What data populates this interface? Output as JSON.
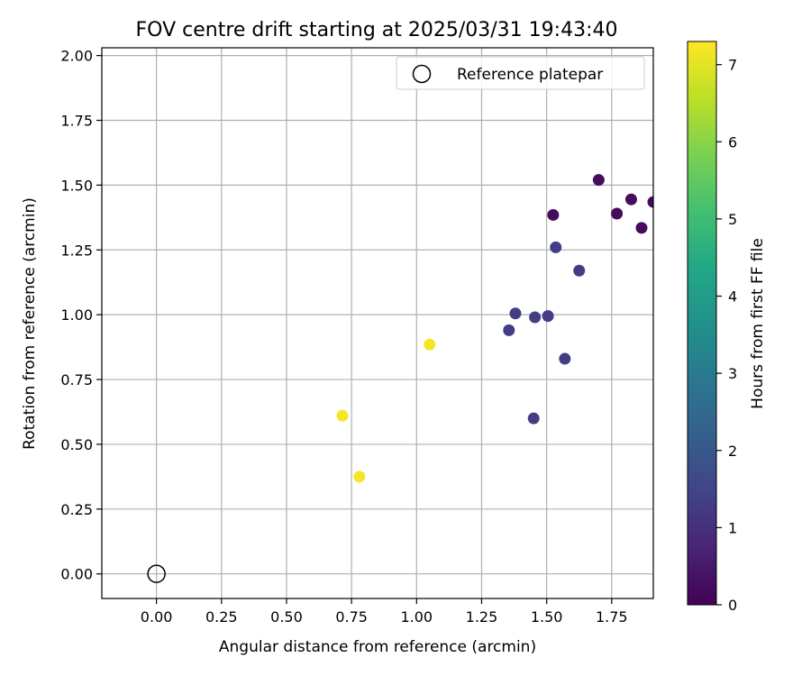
{
  "chart_data": {
    "type": "scatter",
    "title": "FOV centre drift starting at 2025/03/31 19:43:40",
    "xlabel": "Angular distance from reference (arcmin)",
    "ylabel": "Rotation from reference (arcmin)",
    "xlim": [
      -0.21,
      1.91
    ],
    "ylim": [
      -0.095,
      2.03
    ],
    "xticks": [
      0.0,
      0.25,
      0.5,
      0.75,
      1.0,
      1.25,
      1.5,
      1.75
    ],
    "xtick_labels": [
      "0.00",
      "0.25",
      "0.50",
      "0.75",
      "1.00",
      "1.25",
      "1.50",
      "1.75"
    ],
    "yticks": [
      0.0,
      0.25,
      0.5,
      0.75,
      1.0,
      1.25,
      1.5,
      1.75,
      2.0
    ],
    "ytick_labels": [
      "0.00",
      "0.25",
      "0.50",
      "0.75",
      "1.00",
      "1.25",
      "1.50",
      "1.75",
      "2.00"
    ],
    "grid": true,
    "legend": {
      "placement": "top-right",
      "entries": [
        {
          "label": "Reference platepar",
          "marker": "open-circle"
        }
      ]
    },
    "reference_point": {
      "x": 0.0,
      "y": 0.0
    },
    "points": [
      {
        "x": 1.7,
        "y": 1.52,
        "hours": 0.2
      },
      {
        "x": 1.825,
        "y": 1.445,
        "hours": 0.2
      },
      {
        "x": 1.77,
        "y": 1.39,
        "hours": 0.2
      },
      {
        "x": 1.525,
        "y": 1.385,
        "hours": 0.2
      },
      {
        "x": 1.865,
        "y": 1.335,
        "hours": 0.2
      },
      {
        "x": 1.91,
        "y": 1.435,
        "hours": 0.2
      },
      {
        "x": 1.535,
        "y": 1.26,
        "hours": 1.3
      },
      {
        "x": 1.625,
        "y": 1.17,
        "hours": 1.3
      },
      {
        "x": 1.38,
        "y": 1.005,
        "hours": 1.3
      },
      {
        "x": 1.455,
        "y": 0.99,
        "hours": 1.3
      },
      {
        "x": 1.505,
        "y": 0.995,
        "hours": 1.3
      },
      {
        "x": 1.355,
        "y": 0.94,
        "hours": 1.3
      },
      {
        "x": 1.57,
        "y": 0.83,
        "hours": 1.3
      },
      {
        "x": 1.45,
        "y": 0.6,
        "hours": 1.3
      },
      {
        "x": 1.05,
        "y": 0.885,
        "hours": 7.2
      },
      {
        "x": 0.715,
        "y": 0.61,
        "hours": 7.2
      },
      {
        "x": 0.78,
        "y": 0.375,
        "hours": 7.2
      }
    ],
    "colorbar": {
      "label": "Hours from first FF file",
      "colormap": "viridis",
      "range": [
        0,
        7.3
      ],
      "ticks": [
        0,
        1,
        2,
        3,
        4,
        5,
        6,
        7
      ],
      "tick_labels": [
        "0",
        "1",
        "2",
        "3",
        "4",
        "5",
        "6",
        "7"
      ]
    }
  }
}
